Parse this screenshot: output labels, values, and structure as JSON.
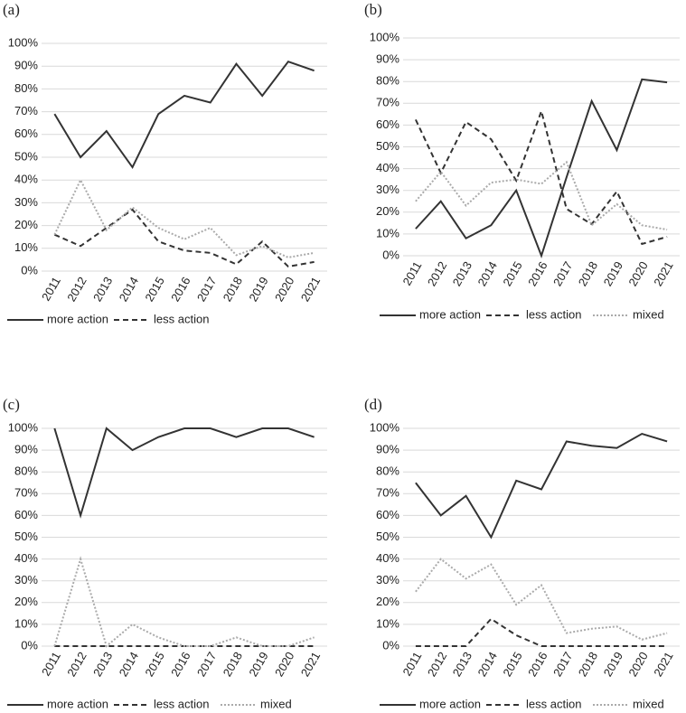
{
  "chart_data": [
    {
      "type": "line",
      "title": "(a)",
      "categories": [
        "2011",
        "2012",
        "2013",
        "2014",
        "2015",
        "2016",
        "2017",
        "2018",
        "2019",
        "2020",
        "2021"
      ],
      "ylim": [
        0,
        100
      ],
      "yticks": [
        {
          "value": 0,
          "label": "0%"
        },
        {
          "value": 10,
          "label": "10%"
        },
        {
          "value": 20,
          "label": "20%"
        },
        {
          "value": 30,
          "label": "30%"
        },
        {
          "value": 40,
          "label": "40%"
        },
        {
          "value": 50,
          "label": "50%"
        },
        {
          "value": 60,
          "label": "60%"
        },
        {
          "value": 70,
          "label": "70%"
        },
        {
          "value": 80,
          "label": "80%"
        },
        {
          "value": 90,
          "label": "90%"
        },
        {
          "value": 100,
          "label": "100%"
        }
      ],
      "grid": true,
      "series": [
        {
          "name": "more action",
          "color": "#333333",
          "line_style": "solid",
          "values": [
            69,
            50,
            61.5,
            45.6,
            69,
            77,
            74,
            91,
            77,
            92,
            88
          ]
        },
        {
          "name": "less action",
          "color": "#333333",
          "line_style": "dashed",
          "values": [
            16,
            11,
            19,
            27,
            13,
            9,
            8,
            3,
            13,
            2,
            4
          ]
        },
        {
          "color": "#aaaaaa",
          "line_style": "dotted",
          "values": [
            16,
            40,
            18,
            28,
            19,
            14,
            19,
            7,
            11,
            6,
            8
          ]
        }
      ]
    },
    {
      "type": "line",
      "title": "(b)",
      "categories": [
        "2011",
        "2012",
        "2013",
        "2014",
        "2015",
        "2016",
        "2017",
        "2018",
        "2019",
        "2020",
        "2021"
      ],
      "ylim": [
        0,
        100
      ],
      "yticks": [
        {
          "value": 0,
          "label": "0%"
        },
        {
          "value": 10,
          "label": "10%"
        },
        {
          "value": 20,
          "label": "20%"
        },
        {
          "value": 30,
          "label": "30%"
        },
        {
          "value": 40,
          "label": "40%"
        },
        {
          "value": 50,
          "label": "50%"
        },
        {
          "value": 60,
          "label": "60%"
        },
        {
          "value": 70,
          "label": "70%"
        },
        {
          "value": 80,
          "label": "80%"
        },
        {
          "value": 90,
          "label": "90%"
        },
        {
          "value": 100,
          "label": "100%"
        }
      ],
      "grid": true,
      "series": [
        {
          "name": "more action",
          "color": "#333333",
          "line_style": "solid",
          "values": [
            12.4,
            25,
            8,
            14,
            30,
            0,
            36,
            71,
            48.5,
            81,
            79.6
          ]
        },
        {
          "name": "less action",
          "color": "#333333",
          "line_style": "dashed",
          "values": [
            62.5,
            38,
            61.4,
            53.5,
            34.5,
            66.4,
            21.5,
            14.5,
            29.5,
            5.4,
            8.7
          ]
        },
        {
          "name": "mixed",
          "color": "#aaaaaa",
          "line_style": "dotted",
          "values": [
            25,
            38.6,
            23,
            33.6,
            35,
            33,
            43,
            14,
            23.7,
            14,
            12
          ]
        }
      ]
    },
    {
      "type": "line",
      "title": "(c)",
      "categories": [
        "2011",
        "2012",
        "2013",
        "2014",
        "2015",
        "2016",
        "2017",
        "2018",
        "2019",
        "2020",
        "2021"
      ],
      "ylim": [
        0,
        100
      ],
      "yticks": [
        {
          "value": 0,
          "label": "0%"
        },
        {
          "value": 10,
          "label": "10%"
        },
        {
          "value": 20,
          "label": "20%"
        },
        {
          "value": 30,
          "label": "30%"
        },
        {
          "value": 40,
          "label": "40%"
        },
        {
          "value": 50,
          "label": "50%"
        },
        {
          "value": 60,
          "label": "60%"
        },
        {
          "value": 70,
          "label": "70%"
        },
        {
          "value": 80,
          "label": "80%"
        },
        {
          "value": 90,
          "label": "90%"
        },
        {
          "value": 100,
          "label": "100%"
        }
      ],
      "grid": true,
      "series": [
        {
          "name": "more action",
          "color": "#333333",
          "line_style": "solid",
          "values": [
            100,
            60,
            100,
            90,
            96,
            100,
            100,
            96,
            100,
            100,
            96
          ]
        },
        {
          "name": "less action",
          "color": "#333333",
          "line_style": "dashed",
          "values": [
            0,
            0,
            0,
            0,
            0,
            0,
            0,
            0,
            0,
            0,
            0
          ]
        },
        {
          "name": "mixed",
          "color": "#aaaaaa",
          "line_style": "dotted",
          "values": [
            0,
            40,
            0,
            10,
            4,
            0,
            0,
            4,
            0,
            0,
            4
          ]
        }
      ]
    },
    {
      "type": "line",
      "title": "(d)",
      "categories": [
        "2011",
        "2012",
        "2013",
        "2014",
        "2015",
        "2016",
        "2017",
        "2018",
        "2019",
        "2020",
        "2021"
      ],
      "ylim": [
        0,
        100
      ],
      "yticks": [
        {
          "value": 0,
          "label": "0%"
        },
        {
          "value": 10,
          "label": "10%"
        },
        {
          "value": 20,
          "label": "20%"
        },
        {
          "value": 30,
          "label": "30%"
        },
        {
          "value": 40,
          "label": "40%"
        },
        {
          "value": 50,
          "label": "50%"
        },
        {
          "value": 60,
          "label": "60%"
        },
        {
          "value": 70,
          "label": "70%"
        },
        {
          "value": 80,
          "label": "80%"
        },
        {
          "value": 90,
          "label": "90%"
        },
        {
          "value": 100,
          "label": "100%"
        }
      ],
      "grid": true,
      "series": [
        {
          "name": "more action",
          "color": "#333333",
          "line_style": "solid",
          "values": [
            75,
            60,
            69,
            50,
            76,
            72,
            94,
            92,
            91,
            97.5,
            94
          ]
        },
        {
          "name": "less action",
          "color": "#333333",
          "line_style": "dashed",
          "values": [
            0,
            0,
            0,
            12.5,
            5,
            0,
            0,
            0,
            0,
            0,
            0
          ]
        },
        {
          "name": "mixed",
          "color": "#aaaaaa",
          "line_style": "dotted",
          "values": [
            25,
            40,
            31,
            37.5,
            19,
            28,
            6,
            8,
            9,
            3,
            6
          ]
        }
      ]
    }
  ]
}
